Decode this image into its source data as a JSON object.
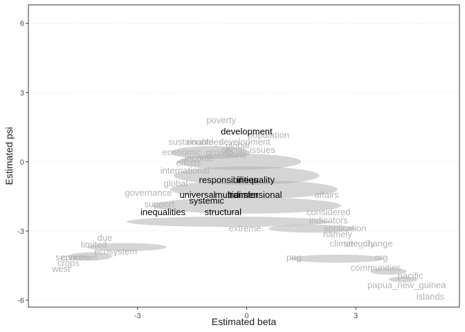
{
  "chart_data": {
    "type": "scatter",
    "xlabel": "Estimated beta",
    "ylabel": "Estimated psi",
    "xlim": [
      -6.0,
      5.85
    ],
    "ylim": [
      -6.3,
      6.8
    ],
    "x_ticks": [
      {
        "value": -3,
        "label": "-3"
      },
      {
        "value": 0,
        "label": "0"
      },
      {
        "value": 3,
        "label": "3"
      }
    ],
    "y_ticks": [
      {
        "value": -6,
        "label": "-6"
      },
      {
        "value": -3,
        "label": "-3"
      },
      {
        "value": 0,
        "label": "0"
      },
      {
        "value": 3,
        "label": "3"
      },
      {
        "value": 6,
        "label": "6"
      }
    ],
    "grid": "horizontal dashed",
    "colors": {
      "highlight": "#000000",
      "background_word": "#b3b3b3",
      "grid": "#ebebeb",
      "axis": "#333333"
    },
    "highlighted_words": [
      {
        "label": "development",
        "x": 0.0,
        "y": 1.3
      },
      {
        "label": "inequality",
        "x": 0.25,
        "y": -0.8
      },
      {
        "label": "responsibilities",
        "x": -0.5,
        "y": -0.8
      },
      {
        "label": "universal",
        "x": -1.35,
        "y": -1.45
      },
      {
        "label": "multidimensional",
        "x": 0.05,
        "y": -1.45
      },
      {
        "label": "transfer",
        "x": -0.1,
        "y": -1.45
      },
      {
        "label": "systemic",
        "x": -1.1,
        "y": -1.7
      },
      {
        "label": "inequalities",
        "x": -2.3,
        "y": -2.2
      },
      {
        "label": "structural",
        "x": -0.65,
        "y": -2.2
      }
    ],
    "background_words": [
      {
        "label": "poverty",
        "x": -0.7,
        "y": 1.8
      },
      {
        "label": "population",
        "x": 0.6,
        "y": 1.15
      },
      {
        "label": "sustainable_development",
        "x": -0.75,
        "y": 0.85
      },
      {
        "label": "countries",
        "x": -1.15,
        "y": 0.85
      },
      {
        "label": "global",
        "x": -0.25,
        "y": 0.7
      },
      {
        "label": "economic_growth",
        "x": -1.35,
        "y": 0.4
      },
      {
        "label": "social_issues",
        "x": 0.05,
        "y": 0.5
      },
      {
        "label": "world",
        "x": -0.3,
        "y": 0.3
      },
      {
        "label": "income",
        "x": -1.3,
        "y": 0.15
      },
      {
        "label": "efforts",
        "x": -1.6,
        "y": -0.05
      },
      {
        "label": "international",
        "x": -1.7,
        "y": -0.4
      },
      {
        "label": "global",
        "x": -1.95,
        "y": -0.95
      },
      {
        "label": "governance",
        "x": -2.7,
        "y": -1.35
      },
      {
        "label": "support",
        "x": -2.4,
        "y": -1.85
      },
      {
        "label": "affairs",
        "x": 2.2,
        "y": -1.45
      },
      {
        "label": "considered",
        "x": 2.25,
        "y": -2.2
      },
      {
        "label": "indicators",
        "x": 2.25,
        "y": -2.55
      },
      {
        "label": "extreme",
        "x": -0.05,
        "y": -2.9
      },
      {
        "label": "application",
        "x": 2.7,
        "y": -2.9
      },
      {
        "label": "namely",
        "x": 2.5,
        "y": -3.15
      },
      {
        "label": "climate_change",
        "x": 3.15,
        "y": -3.55
      },
      {
        "label": "security",
        "x": 3.1,
        "y": -3.55
      },
      {
        "label": "due",
        "x": -3.9,
        "y": -3.3
      },
      {
        "label": "limited",
        "x": -4.2,
        "y": -3.6
      },
      {
        "label": "ecosystem",
        "x": -3.6,
        "y": -3.9
      },
      {
        "label": "services",
        "x": -4.8,
        "y": -4.15
      },
      {
        "label": "countries",
        "x": -4.6,
        "y": -4.15
      },
      {
        "label": "crops",
        "x": -4.9,
        "y": -4.4
      },
      {
        "label": "west",
        "x": -5.1,
        "y": -4.65
      },
      {
        "label": "png",
        "x": 1.3,
        "y": -4.15
      },
      {
        "label": "org",
        "x": 3.7,
        "y": -4.15
      },
      {
        "label": "communities",
        "x": 3.55,
        "y": -4.6
      },
      {
        "label": "islands",
        "x": 5.05,
        "y": -5.85
      },
      {
        "label": "papua_new_guinea",
        "x": 4.4,
        "y": -5.35
      },
      {
        "label": "pacific",
        "x": 4.5,
        "y": -4.95
      }
    ]
  }
}
